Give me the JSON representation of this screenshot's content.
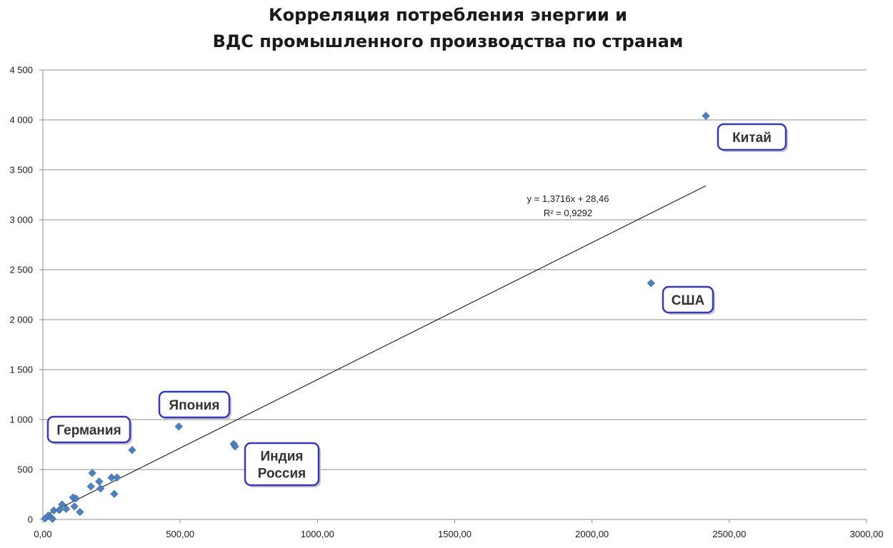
{
  "chart_data": {
    "type": "scatter",
    "title": [
      "Корреляция потребления энергии и",
      "ВДС промышленного производства по странам"
    ],
    "xlabel": "",
    "ylabel": "",
    "xlim": [
      0,
      3000
    ],
    "ylim": [
      0,
      4500
    ],
    "x_ticks": [
      "0,00",
      "500,00",
      "1000,00",
      "1500,00",
      "2000,00",
      "2500,00",
      "3000,00"
    ],
    "y_ticks": [
      "0",
      "500",
      "1 000",
      "1 500",
      "2 000",
      "2 500",
      "3 000",
      "3 500",
      "4 000",
      "4 500"
    ],
    "grid": "horizontal",
    "marker_color": "#4f81bd",
    "trendline_color": "#000000",
    "series": [
      {
        "points": [
          [
            8,
            10
          ],
          [
            20,
            40
          ],
          [
            30,
            20
          ],
          [
            35,
            5
          ],
          [
            40,
            90
          ],
          [
            60,
            95
          ],
          [
            70,
            150
          ],
          [
            85,
            105
          ],
          [
            110,
            220
          ],
          [
            120,
            210
          ],
          [
            115,
            130
          ],
          [
            135,
            75
          ],
          [
            175,
            330
          ],
          [
            180,
            465
          ],
          [
            205,
            380
          ],
          [
            210,
            310
          ],
          [
            250,
            420
          ],
          [
            260,
            255
          ],
          [
            270,
            420
          ],
          [
            325,
            695
          ],
          [
            495,
            930
          ],
          [
            695,
            755
          ],
          [
            700,
            730
          ],
          [
            2215,
            2365
          ],
          [
            2415,
            4040
          ]
        ]
      }
    ],
    "trendline": {
      "slope": 1.3716,
      "intercept": 28.46,
      "x_range": [
        20,
        2415
      ],
      "equation": "y = 1,3716x + 28,46",
      "r2_label": "R² = 0,9292"
    },
    "callouts": [
      {
        "label": "Китай"
      },
      {
        "label": "США"
      },
      {
        "label": "Япония"
      },
      {
        "label": "Германия"
      },
      {
        "label": "Индия\nРоссия"
      }
    ]
  }
}
